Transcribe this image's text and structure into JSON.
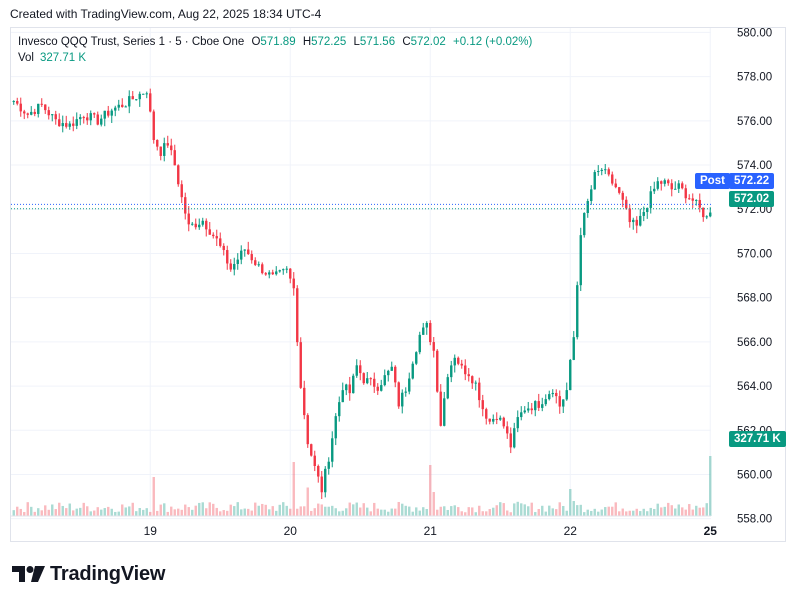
{
  "created_line": "Created with TradingView.com, Aug 22, 2025 18:34 UTC-4",
  "legend": {
    "symbol": "Invesco QQQ Trust, Series 1 · 5 · Cboe One",
    "open_label": "O",
    "open": "571.89",
    "high_label": "H",
    "high": "572.25",
    "low_label": "L",
    "low": "571.56",
    "close_label": "C",
    "close": "572.02",
    "change": "+0.12 (+0.02%)",
    "vol_label": "Vol",
    "vol": "327.71 K"
  },
  "badges": {
    "post_label": "Post",
    "post_price": "572.22",
    "last_price": "572.02",
    "vol": "327.71 K"
  },
  "brand": "TradingView",
  "colors": {
    "up": "#089981",
    "down": "#f23645",
    "post": "#2962ff",
    "grid": "#f0f3fa",
    "text": "#131722"
  },
  "chart_data": {
    "type": "candlestick",
    "y_ticks": [
      558,
      560,
      562,
      564,
      566,
      568,
      570,
      572,
      574,
      576,
      578,
      580
    ],
    "y_tick_labels": [
      "558.00",
      "560.00",
      "562.00",
      "564.00",
      "566.00",
      "568.00",
      "570.00",
      "572.00",
      "574.00",
      "576.00",
      "578.00",
      "580.00"
    ],
    "ylim": [
      556.9,
      580.2
    ],
    "x_ticks": [
      "19",
      "20",
      "21",
      "22",
      "25"
    ],
    "x_tick_index": [
      39,
      79,
      119,
      159,
      199
    ],
    "close_path": [
      [
        0,
        576.9
      ],
      [
        4,
        576.3
      ],
      [
        8,
        576.7
      ],
      [
        12,
        576.0
      ],
      [
        16,
        575.8
      ],
      [
        20,
        576.3
      ],
      [
        24,
        576.0
      ],
      [
        28,
        576.5
      ],
      [
        32,
        576.8
      ],
      [
        36,
        577.2
      ],
      [
        38,
        577.4
      ],
      [
        40,
        575.2
      ],
      [
        42,
        574.6
      ],
      [
        44,
        575.0
      ],
      [
        46,
        574.0
      ],
      [
        48,
        572.5
      ],
      [
        50,
        571.2
      ],
      [
        54,
        571.5
      ],
      [
        58,
        570.6
      ],
      [
        62,
        569.3
      ],
      [
        66,
        570.2
      ],
      [
        70,
        569.4
      ],
      [
        74,
        568.9
      ],
      [
        78,
        569.2
      ],
      [
        80,
        568.4
      ],
      [
        82,
        564.0
      ],
      [
        84,
        561.5
      ],
      [
        86,
        560.3
      ],
      [
        88,
        559.3
      ],
      [
        90,
        560.8
      ],
      [
        92,
        562.6
      ],
      [
        94,
        564.0
      ],
      [
        96,
        563.7
      ],
      [
        98,
        564.9
      ],
      [
        100,
        564.3
      ],
      [
        104,
        564.0
      ],
      [
        108,
        564.8
      ],
      [
        110,
        563.2
      ],
      [
        112,
        563.9
      ],
      [
        114,
        565.2
      ],
      [
        116,
        566.3
      ],
      [
        118,
        566.7
      ],
      [
        120,
        565.6
      ],
      [
        122,
        562.3
      ],
      [
        124,
        564.6
      ],
      [
        126,
        565.4
      ],
      [
        128,
        564.8
      ],
      [
        130,
        564.6
      ],
      [
        132,
        564.1
      ],
      [
        134,
        563.0
      ],
      [
        136,
        562.4
      ],
      [
        138,
        562.7
      ],
      [
        140,
        562.2
      ],
      [
        142,
        561.3
      ],
      [
        144,
        562.5
      ],
      [
        146,
        563.0
      ],
      [
        150,
        563.2
      ],
      [
        154,
        563.9
      ],
      [
        156,
        563.1
      ],
      [
        158,
        563.8
      ],
      [
        160,
        566.2
      ],
      [
        162,
        571.0
      ],
      [
        164,
        572.3
      ],
      [
        166,
        573.5
      ],
      [
        168,
        573.8
      ],
      [
        170,
        573.4
      ],
      [
        172,
        573.0
      ],
      [
        174,
        572.3
      ],
      [
        176,
        571.4
      ],
      [
        178,
        571.2
      ],
      [
        180,
        571.9
      ],
      [
        182,
        572.6
      ],
      [
        184,
        573.2
      ],
      [
        186,
        573.2
      ],
      [
        188,
        572.9
      ],
      [
        190,
        573.0
      ],
      [
        192,
        572.7
      ],
      [
        194,
        572.4
      ],
      [
        196,
        572.0
      ],
      [
        198,
        571.6
      ],
      [
        199,
        572.0
      ]
    ],
    "high_volume_bars": [
      [
        40,
        0.26
      ],
      [
        80,
        0.36
      ],
      [
        84,
        0.19
      ],
      [
        119,
        0.34
      ],
      [
        120,
        0.16
      ],
      [
        159,
        0.18
      ],
      [
        160,
        0.1
      ],
      [
        199,
        0.4
      ]
    ]
  }
}
